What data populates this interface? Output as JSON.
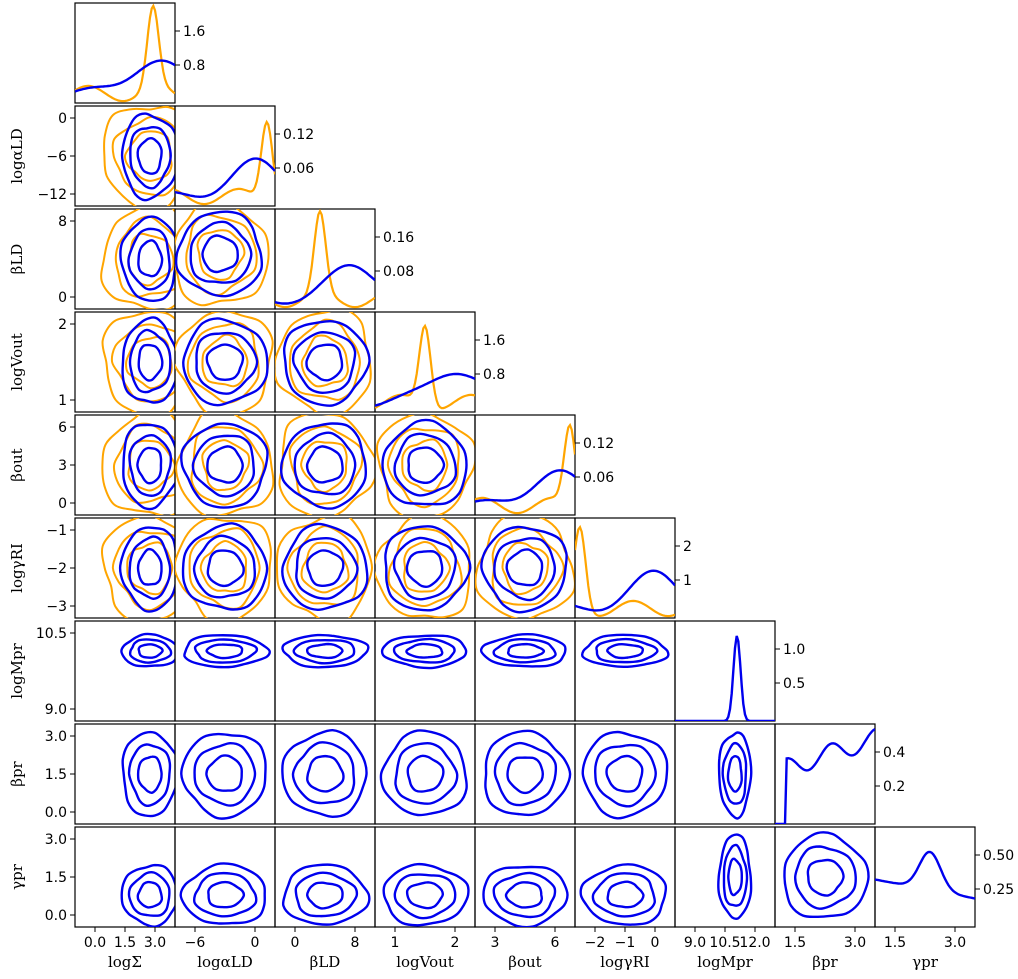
{
  "chart_data": {
    "type": "corner",
    "params": [
      {
        "label": "log",
        "sym": "Σ",
        "sub": "",
        "range": [
          -1,
          3
        ],
        "ticks": [
          0,
          1.5,
          3
        ],
        "tick_labels": [
          "0.0",
          "1.5",
          "3.0"
        ],
        "bottom_label": "logΣ"
      },
      {
        "label": "log",
        "sym": "α",
        "sub": "LD",
        "range": [
          -12,
          2
        ],
        "ticks": [
          -12,
          -6,
          0
        ],
        "tick_labels": [
          "−12",
          "−6",
          "0"
        ],
        "bottom_label": "logαLD"
      },
      {
        "label": "",
        "sym": "β",
        "sub": "LD",
        "range": [
          -2.5,
          11
        ],
        "ticks": [
          0,
          8
        ],
        "tick_labels": [
          "0",
          "8"
        ],
        "bottom_label": "βLD"
      },
      {
        "label": "log",
        "sym": "V",
        "sub": "out",
        "range": [
          0.5,
          2.5
        ],
        "ticks": [
          1,
          2
        ],
        "tick_labels": [
          "1",
          "2"
        ],
        "bottom_label": "logVout"
      },
      {
        "label": "",
        "sym": "β",
        "sub": "out",
        "range": [
          0,
          7.5
        ],
        "ticks": [
          3,
          6
        ],
        "tick_labels": [
          "3",
          "6"
        ],
        "bottom_label": "βout"
      },
      {
        "label": "log",
        "sym": "γ",
        "sub": "RI",
        "range": [
          -3,
          0
        ],
        "ticks": [
          -3,
          -2,
          -1
        ],
        "tick_labels": [
          "−3",
          "−2",
          "−1"
        ],
        "bottom_label": "logγRI"
      },
      {
        "label": "log",
        "sym": "M",
        "sub": "pr",
        "range": [
          8.5,
          11.5
        ],
        "ticks": [
          9,
          10.5
        ],
        "tick_labels": [
          "9.0",
          "10.5"
        ],
        "bottom_label": "logMpr"
      },
      {
        "label": "",
        "sym": "β",
        "sub": "pr",
        "range": [
          0,
          4
        ],
        "ticks": [
          0,
          1.5,
          3
        ],
        "tick_labels": [
          "0.0",
          "1.5",
          "3.0"
        ],
        "bottom_label": "βpr"
      },
      {
        "label": "",
        "sym": "γ",
        "sub": "pr",
        "range": [
          0,
          4
        ],
        "ticks": [
          0,
          1.5,
          3
        ],
        "tick_labels": [
          "0.0",
          "1.5",
          "3.0"
        ],
        "bottom_label": "γpr"
      }
    ],
    "bottom_tick_labels": [
      [
        "0.0",
        "1.5",
        "3.0"
      ],
      [
        "−6",
        "0"
      ],
      [
        "0",
        "8"
      ],
      [
        "1",
        "2"
      ],
      [
        "3",
        "6"
      ],
      [
        "−2",
        "−1",
        "0"
      ],
      [
        "9.0",
        "10.5",
        "12.0"
      ],
      [
        "1.5",
        "3.0"
      ],
      [
        "1.5",
        "3.0"
      ]
    ],
    "left_tick_labels": [
      [],
      [
        "0",
        "−6",
        "−12"
      ],
      [
        "8",
        "0"
      ],
      [
        "2",
        "1"
      ],
      [
        "6",
        "3",
        "0"
      ],
      [
        "−1",
        "−2",
        "−3"
      ],
      [
        "10.5",
        "9.0"
      ],
      [
        "3.0",
        "1.5",
        "0.0"
      ],
      [
        "3.0",
        "1.5",
        "0.0"
      ]
    ],
    "diag_right_ticks": [
      [
        "1.6",
        "0.8"
      ],
      [
        "0.12",
        "0.06"
      ],
      [
        "0.16",
        "0.08"
      ],
      [
        "1.6",
        "0.8"
      ],
      [
        "0.12",
        "0.06"
      ],
      [
        "2",
        "1"
      ],
      [
        "1.0",
        "0.5"
      ],
      [
        "0.4",
        "0.2"
      ],
      [
        "0.50",
        "0.25"
      ]
    ],
    "has_orange": [
      true,
      true,
      true,
      true,
      true,
      true,
      false,
      false,
      false
    ],
    "colors": {
      "prior": "#FFA500",
      "posterior": "#0000EE"
    }
  }
}
